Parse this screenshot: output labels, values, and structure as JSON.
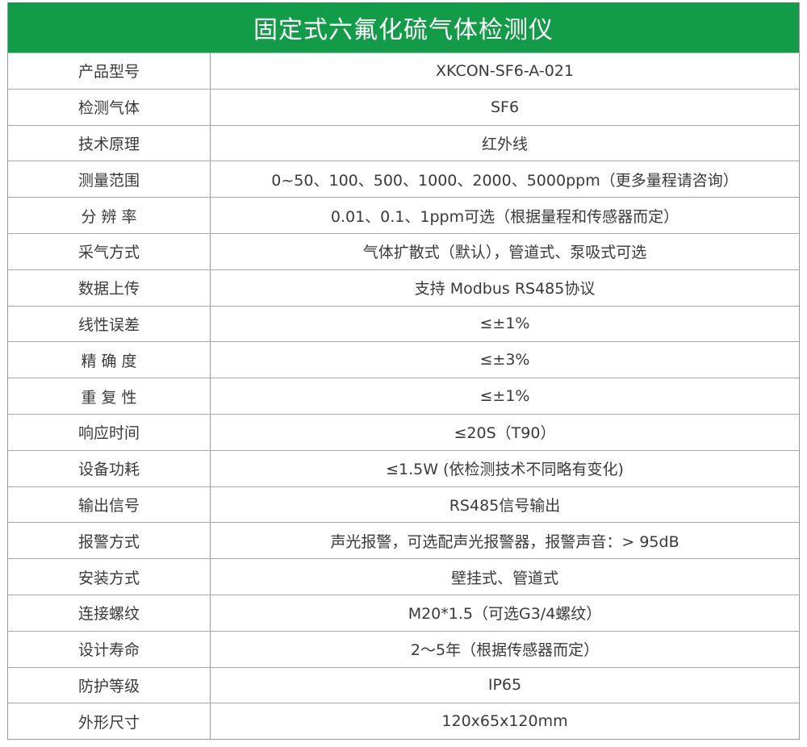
{
  "title": "固定式六氟化硫气体检测仪",
  "colors": {
    "header_bg": "#129c48",
    "header_text": "#ffffff",
    "text": "#3a3a3a"
  },
  "rows": [
    {
      "label": "产品型号",
      "value": "XKCON-SF6-A-021"
    },
    {
      "label": "检测气体",
      "value": "SF6"
    },
    {
      "label": "技术原理",
      "value": "红外线"
    },
    {
      "label": "测量范围",
      "value": "0~50、100、500、1000、2000、5000ppm（更多量程请咨询）"
    },
    {
      "label": "分 辨 率",
      "value": "0.01、0.1、1ppm可选（根据量程和传感器而定）"
    },
    {
      "label": "采气方式",
      "value": "气体扩散式（默认），管道式、泵吸式可选"
    },
    {
      "label": "数据上传",
      "value": "支持 Modbus RS485协议"
    },
    {
      "label": "线性误差",
      "value": "≤±1%"
    },
    {
      "label": "精 确 度",
      "value": "≤±3%"
    },
    {
      "label": "重 复 性",
      "value": "≤±1%"
    },
    {
      "label": "响应时间",
      "value": "≤20S（T90）"
    },
    {
      "label": "设备功耗",
      "value": "≤1.5W (依检测技术不同略有变化)"
    },
    {
      "label": "输出信号",
      "value": "RS485信号输出"
    },
    {
      "label": "报警方式",
      "value": "声光报警，可选配声光报警器，报警声音：> 95dB"
    },
    {
      "label": "安装方式",
      "value": "壁挂式、管道式"
    },
    {
      "label": "连接螺纹",
      "value": "M20*1.5（可选G3/4螺纹）"
    },
    {
      "label": "设计寿命",
      "value": "2～5年（根据传感器而定）"
    },
    {
      "label": "防护等级",
      "value": "IP65"
    },
    {
      "label": "外形尺寸",
      "value": "120x65x120mm"
    }
  ]
}
